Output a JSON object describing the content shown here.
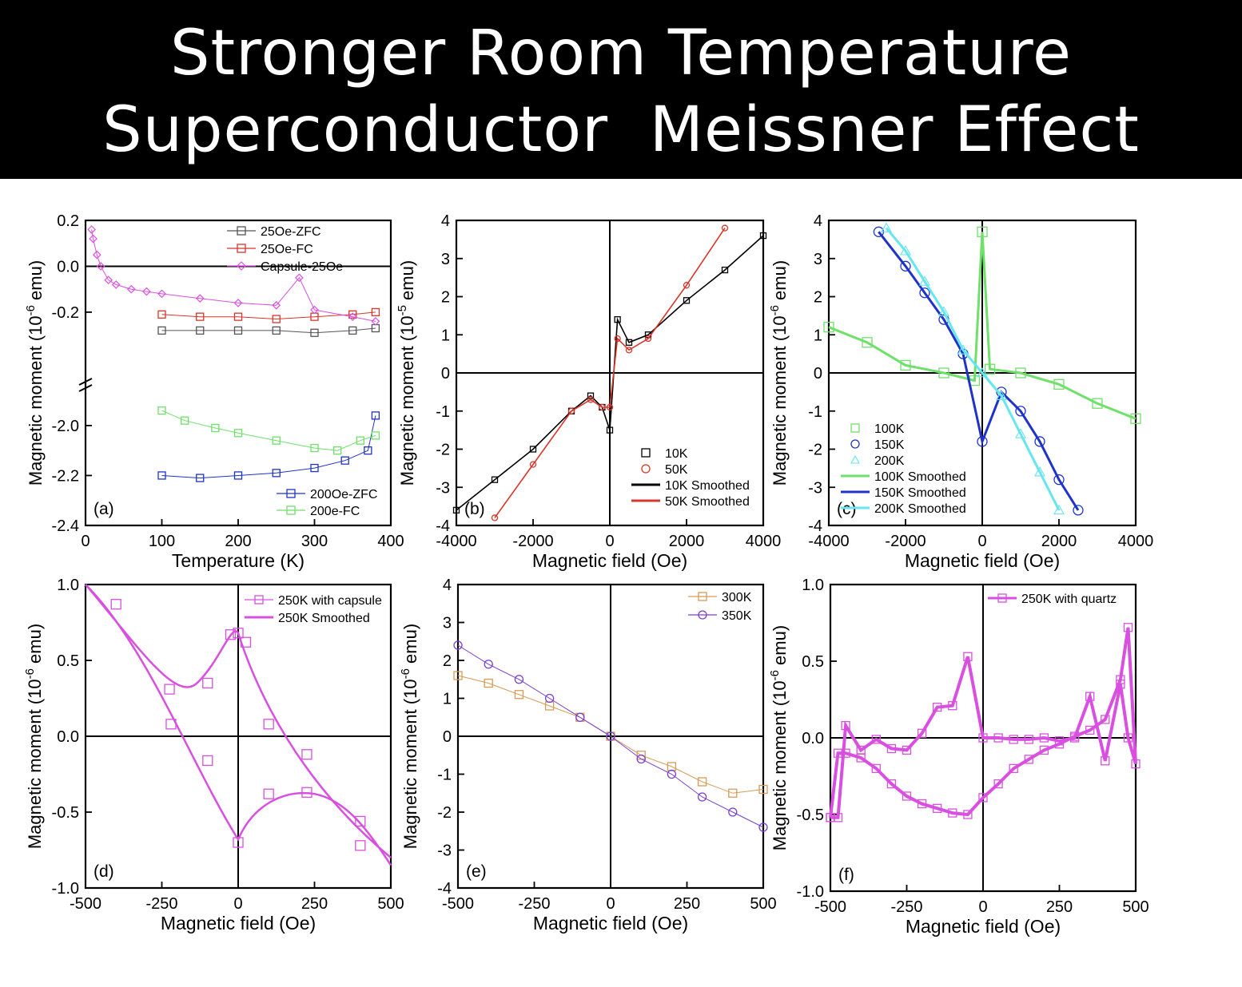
{
  "title": {
    "line1": "Stronger Room Temperature",
    "line2": "Superconductor  Meissner Effect"
  },
  "colors": {
    "black": "#000000",
    "gray": "#555555",
    "red": "#d9352a",
    "magenta": "#d94fe0",
    "blue": "#1f33c9",
    "green": "#6fe06a",
    "cyan": "#66e6ee",
    "orange": "#d99a55",
    "purple": "#7a3ed6",
    "banner": "#000000"
  },
  "chart_data": [
    {
      "id": "a",
      "panel_label": "(a)",
      "type": "scatter",
      "xlabel": "Temperature (K)",
      "ylabel": "Magnetic moment (10^-6 emu)",
      "xlim": [
        0,
        400
      ],
      "xticks": [
        "0",
        "100",
        "200",
        "300",
        "400"
      ],
      "ylim_break": [
        [
          -2.4,
          -1.85
        ],
        [
          -0.35,
          0.2
        ]
      ],
      "yticks": [
        "0.2",
        "0.0",
        "-0.2",
        "-2.0",
        "-2.2",
        "-2.4"
      ],
      "legend_top": [
        "25Oe-ZFC",
        "25Oe-FC",
        "Capsule-25Oe"
      ],
      "legend_bottom": [
        "200Oe-ZFC",
        "200e-FC"
      ],
      "series": [
        {
          "name": "25Oe-ZFC",
          "x": [
            100,
            150,
            200,
            250,
            300,
            350,
            380
          ],
          "y": [
            -0.28,
            -0.28,
            -0.28,
            -0.28,
            -0.29,
            -0.28,
            -0.27
          ]
        },
        {
          "name": "25Oe-FC",
          "x": [
            100,
            150,
            200,
            250,
            300,
            350,
            380
          ],
          "y": [
            -0.21,
            -0.22,
            -0.22,
            -0.23,
            -0.22,
            -0.21,
            -0.2
          ]
        },
        {
          "name": "Capsule-25Oe",
          "x": [
            8,
            10,
            15,
            20,
            30,
            40,
            60,
            80,
            100,
            150,
            200,
            250,
            280,
            300,
            350,
            380
          ],
          "y": [
            0.16,
            0.12,
            0.05,
            0.0,
            -0.06,
            -0.08,
            -0.1,
            -0.11,
            -0.12,
            -0.14,
            -0.16,
            -0.17,
            -0.05,
            -0.19,
            -0.22,
            -0.24
          ]
        },
        {
          "name": "200Oe-ZFC",
          "x": [
            100,
            150,
            200,
            250,
            300,
            340,
            370,
            380
          ],
          "y": [
            -2.2,
            -2.21,
            -2.2,
            -2.19,
            -2.17,
            -2.14,
            -2.1,
            -1.96
          ]
        },
        {
          "name": "200e-FC",
          "x": [
            100,
            130,
            170,
            200,
            250,
            300,
            330,
            360,
            380
          ],
          "y": [
            -1.94,
            -1.98,
            -2.01,
            -2.03,
            -2.06,
            -2.09,
            -2.1,
            -2.06,
            -2.04
          ]
        }
      ]
    },
    {
      "id": "b",
      "panel_label": "(b)",
      "type": "scatter",
      "xlabel": "Magnetic field (Oe)",
      "ylabel": "Magnetic moment (10^-5 emu)",
      "xlim": [
        -4000,
        4000
      ],
      "ylim": [
        -4,
        4
      ],
      "xticks": [
        "-4000",
        "-2000",
        "0",
        "2000",
        "4000"
      ],
      "yticks": [
        "4",
        "3",
        "2",
        "1",
        "0",
        "-1",
        "-2",
        "-3",
        "-4"
      ],
      "legend": [
        "10K",
        "50K",
        "10K Smoothed",
        "50K Smoothed"
      ],
      "series": [
        {
          "name": "10K",
          "x": [
            -4000,
            -3000,
            -2000,
            -1000,
            -500,
            -200,
            0,
            200,
            500,
            1000,
            2000,
            3000,
            4000
          ],
          "y": [
            -3.6,
            -2.8,
            -2.0,
            -1.0,
            -0.6,
            -0.9,
            -1.5,
            1.4,
            0.8,
            1.0,
            1.9,
            2.7,
            3.6
          ]
        },
        {
          "name": "50K",
          "x": [
            -3000,
            -2000,
            -1000,
            -500,
            -200,
            0,
            200,
            500,
            1000,
            2000,
            3000
          ],
          "y": [
            -3.8,
            -2.4,
            -1.0,
            -0.7,
            -0.9,
            -0.9,
            0.9,
            0.6,
            0.9,
            2.3,
            3.8
          ]
        }
      ]
    },
    {
      "id": "c",
      "panel_label": "(c)",
      "type": "scatter",
      "xlabel": "Magnetic field (Oe)",
      "ylabel": "Magnetic moment (10^-6 emu)",
      "xlim": [
        -4000,
        4000
      ],
      "ylim": [
        -4,
        4
      ],
      "xticks": [
        "-4000",
        "-2000",
        "0",
        "2000",
        "4000"
      ],
      "yticks": [
        "4",
        "3",
        "2",
        "1",
        "0",
        "-1",
        "-2",
        "-3",
        "-4"
      ],
      "legend": [
        "100K",
        "150K",
        "200K",
        "100K Smoothed",
        "150K Smoothed",
        "200K Smoothed"
      ],
      "series": [
        {
          "name": "100K",
          "x": [
            -4000,
            -3000,
            -2000,
            -1000,
            -200,
            0,
            200,
            1000,
            2000,
            3000,
            4000
          ],
          "y": [
            1.2,
            0.8,
            0.2,
            0.0,
            -0.2,
            3.7,
            0.1,
            0.0,
            -0.3,
            -0.8,
            -1.2
          ]
        },
        {
          "name": "150K",
          "x": [
            -2700,
            -2000,
            -1500,
            -1000,
            -500,
            0,
            500,
            1000,
            1500,
            2000,
            2500
          ],
          "y": [
            3.7,
            2.8,
            2.1,
            1.4,
            0.5,
            -1.8,
            -0.5,
            -1.0,
            -1.8,
            -2.8,
            -3.6
          ]
        },
        {
          "name": "200K",
          "x": [
            -2500,
            -2000,
            -1500,
            -1000,
            -500,
            0,
            500,
            1000,
            1500,
            2000
          ],
          "y": [
            3.8,
            3.2,
            2.4,
            1.6,
            0.6,
            0.0,
            -0.6,
            -1.6,
            -2.6,
            -3.6
          ]
        }
      ]
    },
    {
      "id": "d",
      "panel_label": "(d)",
      "type": "scatter",
      "xlabel": "Magnetic field (Oe)",
      "ylabel": "Magnetic moment (10^-6 emu)",
      "xlim": [
        -500,
        500
      ],
      "ylim": [
        -1.0,
        1.0
      ],
      "xticks": [
        "-500",
        "-250",
        "0",
        "250",
        "500"
      ],
      "yticks": [
        "1.0",
        "0.5",
        "0.0",
        "-0.5",
        "-1.0"
      ],
      "legend": [
        "250K with capsule",
        "250K Smoothed"
      ],
      "series": [
        {
          "name": "250K with capsule",
          "x": [
            -400,
            -225,
            -220,
            -100,
            -100,
            -25,
            0,
            0,
            25,
            100,
            100,
            225,
            225,
            400,
            400
          ],
          "y": [
            0.87,
            0.31,
            0.08,
            0.35,
            -0.16,
            0.67,
            0.68,
            -0.7,
            0.62,
            0.08,
            -0.38,
            -0.12,
            -0.37,
            -0.56,
            -0.72
          ]
        }
      ]
    },
    {
      "id": "e",
      "panel_label": "(e)",
      "type": "scatter",
      "xlabel": "Magnetic field (Oe)",
      "ylabel": "Magnetic moment (10^-6 emu)",
      "xlim": [
        -500,
        500
      ],
      "ylim": [
        -4,
        4
      ],
      "xticks": [
        "-500",
        "-250",
        "0",
        "250",
        "500"
      ],
      "yticks": [
        "4",
        "3",
        "2",
        "1",
        "0",
        "-1",
        "-2",
        "-3",
        "-4"
      ],
      "legend": [
        "300K",
        "350K"
      ],
      "series": [
        {
          "name": "300K",
          "x": [
            -500,
            -400,
            -300,
            -200,
            -100,
            0,
            100,
            200,
            300,
            400,
            500
          ],
          "y": [
            1.6,
            1.4,
            1.1,
            0.8,
            0.5,
            0.0,
            -0.5,
            -0.8,
            -1.2,
            -1.5,
            -1.4
          ]
        },
        {
          "name": "350K",
          "x": [
            -500,
            -400,
            -300,
            -200,
            -100,
            0,
            100,
            200,
            300,
            400,
            500
          ],
          "y": [
            2.4,
            1.9,
            1.5,
            1.0,
            0.5,
            0.0,
            -0.6,
            -1.0,
            -1.6,
            -2.0,
            -2.4
          ]
        }
      ]
    },
    {
      "id": "f",
      "panel_label": "(f)",
      "type": "line",
      "xlabel": "Magnetic field (Oe)",
      "ylabel": "Magnetic moment (10^-6 emu)",
      "xlim": [
        -500,
        500
      ],
      "ylim": [
        -1.0,
        1.0
      ],
      "xticks": [
        "-500",
        "-250",
        "0",
        "250",
        "500"
      ],
      "yticks": [
        "1.0",
        "0.5",
        "0.0",
        "-0.5",
        "-1.0"
      ],
      "legend": [
        "250K with quartz"
      ],
      "series": [
        {
          "name": "250K with quartz",
          "x": [
            -500,
            -475,
            -450,
            -400,
            -350,
            -300,
            -250,
            -200,
            -150,
            -100,
            -50,
            0,
            50,
            100,
            150,
            200,
            250,
            300,
            350,
            400,
            450,
            475,
            500,
            475,
            450,
            400,
            350,
            300,
            250,
            200,
            150,
            100,
            50,
            0,
            -50,
            -100,
            -150,
            -200,
            -250,
            -300,
            -350,
            -400,
            -450,
            -475,
            -500
          ],
          "y": [
            -0.52,
            -0.1,
            -0.1,
            -0.13,
            -0.2,
            -0.3,
            -0.38,
            -0.43,
            -0.46,
            -0.49,
            -0.5,
            -0.39,
            -0.3,
            -0.2,
            -0.14,
            -0.08,
            -0.04,
            0.01,
            0.05,
            0.12,
            0.38,
            0.72,
            -0.17,
            0.0,
            0.35,
            -0.15,
            0.27,
            0.0,
            -0.02,
            0.0,
            -0.01,
            -0.01,
            0.0,
            0.0,
            0.53,
            0.21,
            0.2,
            0.03,
            -0.08,
            -0.07,
            -0.01,
            -0.08,
            0.08,
            -0.52,
            -0.52
          ]
        }
      ]
    }
  ]
}
